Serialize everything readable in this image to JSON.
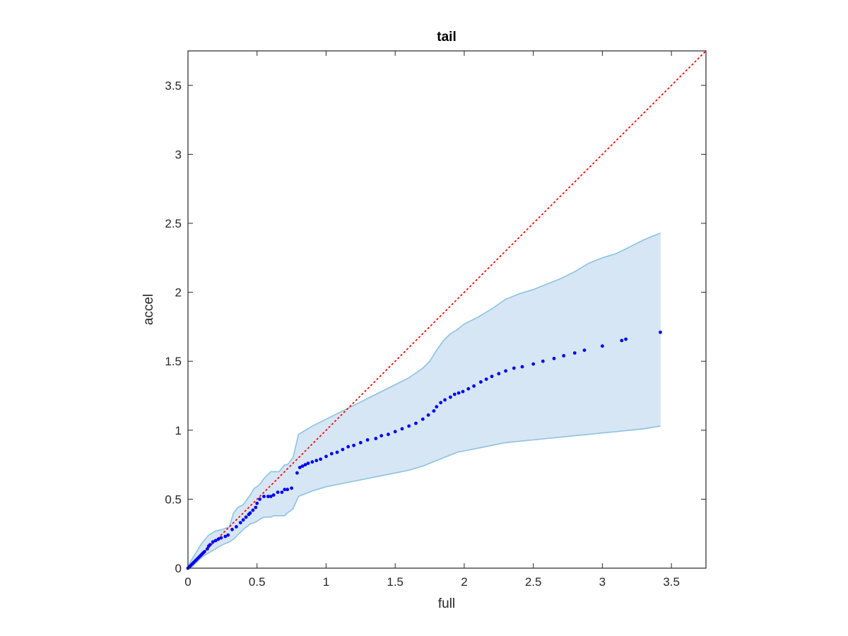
{
  "chart_data": {
    "type": "scatter",
    "title": "tail",
    "xlabel": "full",
    "ylabel": "accel",
    "xlim": [
      0,
      3.75
    ],
    "ylim": [
      0,
      3.75
    ],
    "xticks": [
      0,
      0.5,
      1,
      1.5,
      2,
      2.5,
      3,
      3.5
    ],
    "yticks": [
      0,
      0.5,
      1,
      1.5,
      2,
      2.5,
      3,
      3.5
    ],
    "xtick_labels": [
      "0",
      "0.5",
      "1",
      "1.5",
      "2",
      "2.5",
      "3",
      "3.5"
    ],
    "ytick_labels": [
      "0",
      "0.5",
      "1",
      "1.5",
      "2",
      "2.5",
      "3",
      "3.5"
    ],
    "grid": false,
    "colors": {
      "points": "#0000ee",
      "reference_line": "#ff0000",
      "band_fill": "#d6e6f4",
      "band_edge": "#8dc2e0",
      "axes": "#262626"
    },
    "reference_line": {
      "style": "dotted",
      "x": [
        0,
        3.75
      ],
      "y": [
        0,
        3.75
      ]
    },
    "band": {
      "x": [
        0,
        0.02,
        0.05,
        0.1,
        0.15,
        0.2,
        0.25,
        0.3,
        0.33,
        0.36,
        0.4,
        0.45,
        0.48,
        0.5,
        0.53,
        0.55,
        0.6,
        0.62,
        0.66,
        0.7,
        0.72,
        0.76,
        0.8,
        0.85,
        0.9,
        1.0,
        1.1,
        1.2,
        1.3,
        1.4,
        1.5,
        1.6,
        1.7,
        1.75,
        1.8,
        1.85,
        1.9,
        1.95,
        2.0,
        2.1,
        2.2,
        2.3,
        2.4,
        2.5,
        2.6,
        2.7,
        2.8,
        2.9,
        3.0,
        3.1,
        3.2,
        3.3,
        3.42
      ],
      "upper": [
        0,
        0.05,
        0.1,
        0.18,
        0.24,
        0.27,
        0.28,
        0.3,
        0.4,
        0.44,
        0.46,
        0.53,
        0.58,
        0.59,
        0.62,
        0.65,
        0.7,
        0.7,
        0.7,
        0.75,
        0.75,
        0.8,
        0.97,
        1.0,
        1.03,
        1.08,
        1.13,
        1.18,
        1.23,
        1.28,
        1.33,
        1.38,
        1.45,
        1.5,
        1.58,
        1.65,
        1.7,
        1.73,
        1.77,
        1.82,
        1.88,
        1.95,
        1.99,
        2.02,
        2.06,
        2.1,
        2.15,
        2.21,
        2.25,
        2.28,
        2.33,
        2.38,
        2.43
      ],
      "lower": [
        0,
        0.0,
        0.03,
        0.08,
        0.11,
        0.14,
        0.17,
        0.19,
        0.21,
        0.24,
        0.28,
        0.32,
        0.33,
        0.34,
        0.36,
        0.37,
        0.37,
        0.38,
        0.38,
        0.38,
        0.4,
        0.43,
        0.52,
        0.54,
        0.56,
        0.59,
        0.61,
        0.63,
        0.65,
        0.67,
        0.69,
        0.71,
        0.74,
        0.76,
        0.78,
        0.8,
        0.82,
        0.84,
        0.85,
        0.87,
        0.89,
        0.91,
        0.92,
        0.93,
        0.94,
        0.95,
        0.96,
        0.97,
        0.98,
        0.99,
        1.0,
        1.01,
        1.03
      ]
    },
    "series": [
      {
        "x": [
          0.0,
          0.01,
          0.02,
          0.03,
          0.04,
          0.05,
          0.06,
          0.07,
          0.08,
          0.09,
          0.1,
          0.11,
          0.12,
          0.14,
          0.15,
          0.16,
          0.18,
          0.2,
          0.22,
          0.24,
          0.27,
          0.29,
          0.32,
          0.35,
          0.38,
          0.4,
          0.42,
          0.44,
          0.45,
          0.47,
          0.49,
          0.5,
          0.52,
          0.55,
          0.58,
          0.6,
          0.62,
          0.65,
          0.68,
          0.7,
          0.72,
          0.75,
          0.79,
          0.81,
          0.83,
          0.85,
          0.87,
          0.9,
          0.93,
          0.96,
          1.0,
          1.04,
          1.08,
          1.12,
          1.16,
          1.2,
          1.25,
          1.3,
          1.36,
          1.4,
          1.45,
          1.5,
          1.55,
          1.6,
          1.65,
          1.7,
          1.74,
          1.78,
          1.8,
          1.83,
          1.86,
          1.9,
          1.93,
          1.96,
          1.99,
          2.03,
          2.07,
          2.12,
          2.16,
          2.2,
          2.25,
          2.3,
          2.36,
          2.42,
          2.5,
          2.57,
          2.65,
          2.72,
          2.8,
          2.87,
          3.0,
          3.14,
          3.17,
          3.42
        ],
        "y": [
          0.0,
          0.01,
          0.02,
          0.03,
          0.04,
          0.05,
          0.06,
          0.07,
          0.08,
          0.09,
          0.1,
          0.11,
          0.12,
          0.14,
          0.16,
          0.17,
          0.19,
          0.2,
          0.21,
          0.22,
          0.23,
          0.24,
          0.28,
          0.3,
          0.33,
          0.35,
          0.37,
          0.39,
          0.4,
          0.42,
          0.44,
          0.47,
          0.5,
          0.52,
          0.52,
          0.52,
          0.53,
          0.55,
          0.55,
          0.57,
          0.57,
          0.58,
          0.69,
          0.73,
          0.74,
          0.75,
          0.76,
          0.77,
          0.78,
          0.79,
          0.81,
          0.83,
          0.84,
          0.86,
          0.88,
          0.89,
          0.91,
          0.93,
          0.94,
          0.96,
          0.97,
          0.99,
          1.01,
          1.03,
          1.05,
          1.08,
          1.11,
          1.14,
          1.17,
          1.2,
          1.22,
          1.24,
          1.26,
          1.27,
          1.28,
          1.3,
          1.32,
          1.35,
          1.37,
          1.39,
          1.41,
          1.43,
          1.45,
          1.46,
          1.48,
          1.5,
          1.52,
          1.54,
          1.56,
          1.58,
          1.61,
          1.65,
          1.66,
          1.71
        ]
      }
    ]
  }
}
